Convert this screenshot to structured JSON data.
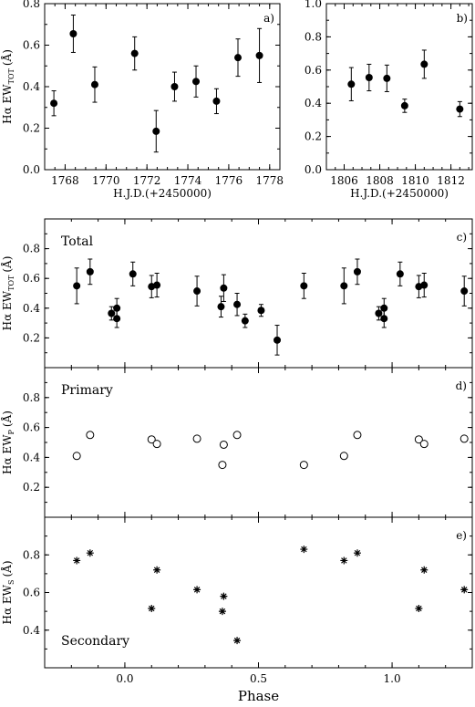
{
  "chart_data": [
    {
      "id": "a",
      "type": "scatter",
      "panel_label": "a)",
      "xlabel": "H.J.D.(+2450000)",
      "ylabel": "Hα EW",
      "ylabel_sub": "TOT",
      "ylabel_unit": "(Å)",
      "xlim": [
        1767,
        1778.5
      ],
      "ylim": [
        0,
        0.8
      ],
      "xticks": [
        1768,
        1770,
        1772,
        1774,
        1776,
        1778
      ],
      "yticks": [
        0.0,
        0.2,
        0.4,
        0.6,
        0.8
      ],
      "ytick_labels": [
        "0.0",
        "0.2",
        "0.4",
        "0.6",
        "0.8"
      ],
      "marker": "filled-circle",
      "points": [
        {
          "x": 1767.45,
          "y": 0.32,
          "err": 0.06
        },
        {
          "x": 1768.4,
          "y": 0.655,
          "err": 0.09
        },
        {
          "x": 1769.45,
          "y": 0.41,
          "err": 0.085
        },
        {
          "x": 1771.4,
          "y": 0.56,
          "err": 0.08
        },
        {
          "x": 1772.45,
          "y": 0.185,
          "err": 0.1
        },
        {
          "x": 1773.35,
          "y": 0.4,
          "err": 0.07
        },
        {
          "x": 1774.4,
          "y": 0.425,
          "err": 0.075
        },
        {
          "x": 1775.4,
          "y": 0.33,
          "err": 0.06
        },
        {
          "x": 1776.45,
          "y": 0.54,
          "err": 0.09
        },
        {
          "x": 1777.5,
          "y": 0.55,
          "err": 0.13
        }
      ]
    },
    {
      "id": "b",
      "type": "scatter",
      "panel_label": "b)",
      "xlabel": "H.J.D.(+2450000)",
      "xlim": [
        1805,
        1813.2
      ],
      "ylim": [
        0,
        1.0
      ],
      "xticks": [
        1806,
        1808,
        1810,
        1812
      ],
      "yticks": [
        0.0,
        0.2,
        0.4,
        0.6,
        0.8,
        1.0
      ],
      "ytick_labels": [
        "0.0",
        "0.2",
        "0.4",
        "0.6",
        "0.8",
        "1.0"
      ],
      "marker": "filled-circle",
      "points": [
        {
          "x": 1806.4,
          "y": 0.515,
          "err": 0.1
        },
        {
          "x": 1807.4,
          "y": 0.555,
          "err": 0.08
        },
        {
          "x": 1808.4,
          "y": 0.55,
          "err": 0.08
        },
        {
          "x": 1809.4,
          "y": 0.385,
          "err": 0.04
        },
        {
          "x": 1810.5,
          "y": 0.635,
          "err": 0.085
        },
        {
          "x": 1812.5,
          "y": 0.365,
          "err": 0.045
        }
      ]
    },
    {
      "id": "c",
      "type": "scatter",
      "panel_label": "c)",
      "title": "Total",
      "ylabel": "Hα EW",
      "ylabel_sub": "TOT",
      "ylabel_unit": "(Å)",
      "xlim": [
        -0.3,
        1.3
      ],
      "ylim": [
        0,
        1.0
      ],
      "yticks": [
        0.2,
        0.4,
        0.6,
        0.8
      ],
      "ytick_labels": [
        "0.2",
        "0.4",
        "0.6",
        "0.8"
      ],
      "marker": "filled-circle",
      "points": [
        {
          "x": -0.18,
          "y": 0.55,
          "err": 0.12
        },
        {
          "x": -0.13,
          "y": 0.645,
          "err": 0.085
        },
        {
          "x": -0.05,
          "y": 0.365,
          "err": 0.045
        },
        {
          "x": -0.03,
          "y": 0.33,
          "err": 0.06
        },
        {
          "x": -0.03,
          "y": 0.4,
          "err": 0.065
        },
        {
          "x": 0.03,
          "y": 0.63,
          "err": 0.08
        },
        {
          "x": 0.1,
          "y": 0.545,
          "err": 0.075
        },
        {
          "x": 0.12,
          "y": 0.555,
          "err": 0.08
        },
        {
          "x": 0.27,
          "y": 0.515,
          "err": 0.1
        },
        {
          "x": 0.36,
          "y": 0.41,
          "err": 0.07
        },
        {
          "x": 0.37,
          "y": 0.535,
          "err": 0.09
        },
        {
          "x": 0.42,
          "y": 0.425,
          "err": 0.075
        },
        {
          "x": 0.45,
          "y": 0.315,
          "err": 0.045
        },
        {
          "x": 0.51,
          "y": 0.385,
          "err": 0.04
        },
        {
          "x": 0.57,
          "y": 0.185,
          "err": 0.1
        },
        {
          "x": 0.67,
          "y": 0.55,
          "err": 0.085
        },
        {
          "x": 0.82,
          "y": 0.55,
          "err": 0.12
        },
        {
          "x": 0.87,
          "y": 0.645,
          "err": 0.085
        },
        {
          "x": 0.95,
          "y": 0.365,
          "err": 0.045
        },
        {
          "x": 0.97,
          "y": 0.33,
          "err": 0.06
        },
        {
          "x": 0.97,
          "y": 0.4,
          "err": 0.065
        },
        {
          "x": 1.03,
          "y": 0.63,
          "err": 0.08
        },
        {
          "x": 1.1,
          "y": 0.545,
          "err": 0.075
        },
        {
          "x": 1.12,
          "y": 0.555,
          "err": 0.08
        },
        {
          "x": 1.27,
          "y": 0.515,
          "err": 0.1
        }
      ]
    },
    {
      "id": "d",
      "type": "scatter",
      "panel_label": "d)",
      "title": "Primary",
      "ylabel": "Hα EW",
      "ylabel_sub": "P",
      "ylabel_unit": "(Å)",
      "xlim": [
        -0.3,
        1.3
      ],
      "ylim": [
        0,
        1.0
      ],
      "yticks": [
        0.2,
        0.4,
        0.6,
        0.8
      ],
      "ytick_labels": [
        "0.2",
        "0.4",
        "0.6",
        "0.8"
      ],
      "marker": "open-circle",
      "points": [
        {
          "x": -0.18,
          "y": 0.41
        },
        {
          "x": -0.13,
          "y": 0.55
        },
        {
          "x": 0.1,
          "y": 0.52
        },
        {
          "x": 0.12,
          "y": 0.49
        },
        {
          "x": 0.27,
          "y": 0.525
        },
        {
          "x": 0.365,
          "y": 0.35
        },
        {
          "x": 0.37,
          "y": 0.485
        },
        {
          "x": 0.42,
          "y": 0.55
        },
        {
          "x": 0.67,
          "y": 0.35
        },
        {
          "x": 0.82,
          "y": 0.41
        },
        {
          "x": 0.87,
          "y": 0.55
        },
        {
          "x": 1.1,
          "y": 0.52
        },
        {
          "x": 1.12,
          "y": 0.49
        },
        {
          "x": 1.27,
          "y": 0.525
        }
      ]
    },
    {
      "id": "e",
      "type": "scatter",
      "panel_label": "e)",
      "title": "Secondary",
      "ylabel": "Hα EW",
      "ylabel_sub": "S",
      "ylabel_unit": "(Å)",
      "xlabel": "Phase",
      "xlim": [
        -0.3,
        1.3
      ],
      "ylim": [
        0.2,
        1.0
      ],
      "xticks": [
        0.0,
        0.5,
        1.0
      ],
      "xtick_labels": [
        "0.0",
        "0.5",
        "1.0"
      ],
      "yticks": [
        0.4,
        0.6,
        0.8
      ],
      "ytick_labels": [
        "0.4",
        "0.6",
        "0.8"
      ],
      "marker": "asterisk",
      "points": [
        {
          "x": -0.18,
          "y": 0.77
        },
        {
          "x": -0.13,
          "y": 0.81
        },
        {
          "x": 0.1,
          "y": 0.515
        },
        {
          "x": 0.12,
          "y": 0.72
        },
        {
          "x": 0.27,
          "y": 0.615
        },
        {
          "x": 0.365,
          "y": 0.5
        },
        {
          "x": 0.37,
          "y": 0.58
        },
        {
          "x": 0.42,
          "y": 0.345
        },
        {
          "x": 0.67,
          "y": 0.83
        },
        {
          "x": 0.82,
          "y": 0.77
        },
        {
          "x": 0.87,
          "y": 0.81
        },
        {
          "x": 1.1,
          "y": 0.515
        },
        {
          "x": 1.12,
          "y": 0.72
        },
        {
          "x": 1.27,
          "y": 0.615
        }
      ]
    }
  ]
}
